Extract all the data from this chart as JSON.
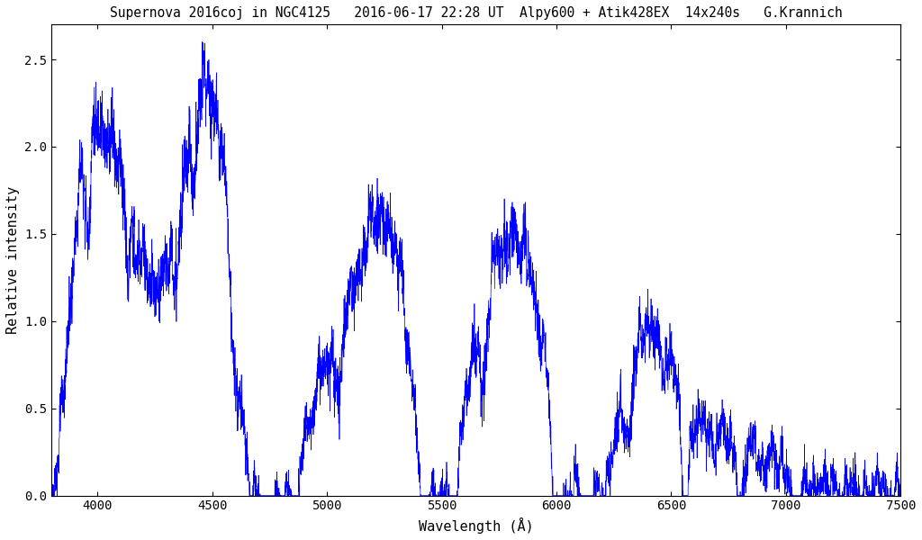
{
  "title": "Supernova 2016coj in NGC4125   2016-06-17 22:28 UT  Alpy600 + Atik428EX  14x240s   G.Krannich",
  "xlabel": "Wavelength (Å)",
  "ylabel": "Relative intensity",
  "xlim": [
    3800,
    7500
  ],
  "ylim": [
    0,
    2.7
  ],
  "line_color": "blue",
  "background_color": "white",
  "title_fontsize": 10.5,
  "label_fontsize": 11,
  "tick_fontsize": 10,
  "yticks": [
    0,
    0.5,
    1,
    1.5,
    2,
    2.5
  ],
  "xticks": [
    4000,
    4500,
    5000,
    5500,
    6000,
    6500,
    7000,
    7500
  ]
}
